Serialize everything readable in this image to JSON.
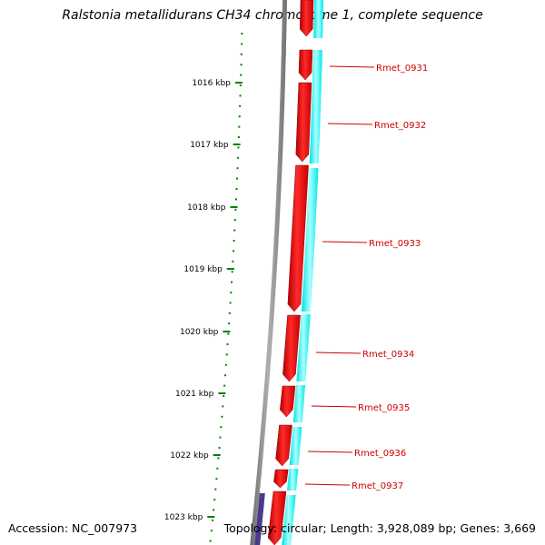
{
  "title": "Ralstonia metallidurans CH34 chromosome 1, complete sequence",
  "footer": {
    "accession": "Accession: NC_007973",
    "summary": "Topology: circular; Length: 3,928,089 bp; Genes: 3,669"
  },
  "colors": {
    "backbone": "#808080",
    "forward_cds": "#ff0000",
    "reverse_cds": "#00ffff",
    "other_feature": "#4b3a8c",
    "ticks": "#008000",
    "gene_labels": "#cc0000"
  },
  "scale": {
    "unit": "kbp",
    "labels": [
      "1016 kbp",
      "1017 kbp",
      "1018 kbp",
      "1019 kbp",
      "1020 kbp",
      "1021 kbp",
      "1022 kbp",
      "1023 kbp"
    ]
  },
  "genes": [
    {
      "label": "Rmet_0931"
    },
    {
      "label": "Rmet_0932"
    },
    {
      "label": "Rmet_0933"
    },
    {
      "label": "Rmet_0934"
    },
    {
      "label": "Rmet_0935"
    },
    {
      "label": "Rmet_0936"
    },
    {
      "label": "Rmet_0937"
    }
  ]
}
